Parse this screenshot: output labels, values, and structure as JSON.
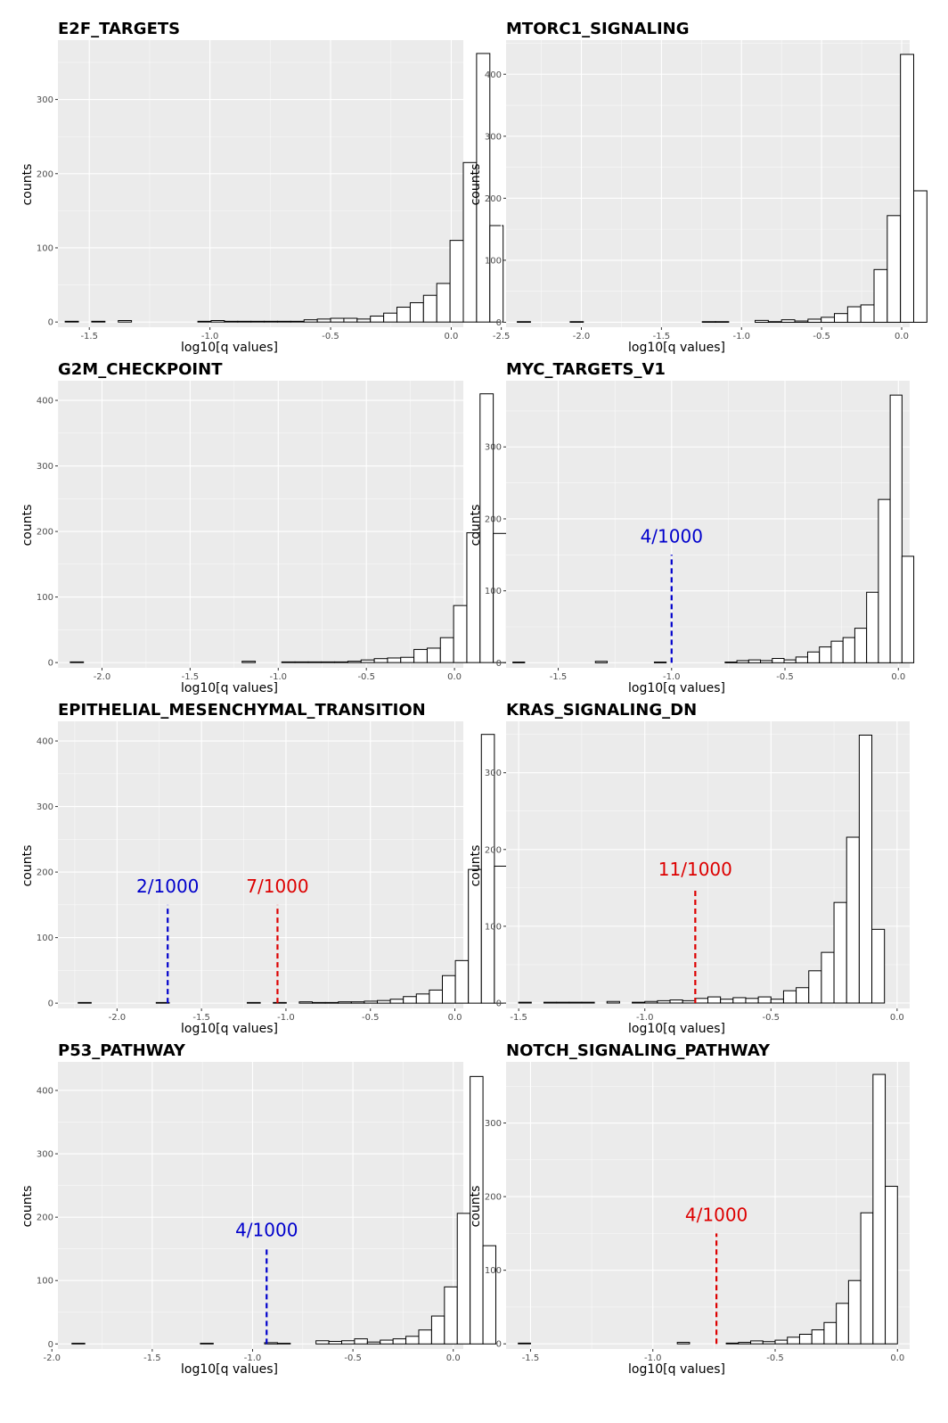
{
  "colors": {
    "panel_background": "#ebebeb",
    "grid_major": "#ffffff",
    "bar_fill": "#ffffff",
    "bar_stroke": "#000000",
    "blue_annotation": "#0000cc",
    "red_annotation": "#dd0000"
  },
  "chart_data": [
    {
      "type": "bar",
      "title": "E2F_TARGETS",
      "xlabel": "log10[q values]",
      "ylabel": "counts",
      "xlim": [
        -1.63,
        0.05
      ],
      "ylim": [
        -7,
        380
      ],
      "xticks": [
        -1.5,
        -1.0,
        -0.5,
        0.0
      ],
      "xtick_labels": [
        "-1.5",
        "-1.0",
        "-0.5",
        "0.0"
      ],
      "yticks": [
        0,
        100,
        200,
        300
      ],
      "yticks_labels": [
        "0",
        "100",
        "200",
        "300"
      ],
      "bin_start": -1.6,
      "bin_width": 0.055,
      "values": [
        1,
        0,
        1,
        0,
        2,
        0,
        0,
        0,
        0,
        0,
        1,
        2,
        1,
        1,
        1,
        1,
        1,
        1,
        3,
        4,
        5,
        5,
        4,
        8,
        12,
        20,
        26,
        36,
        52,
        110,
        215,
        362,
        130
      ],
      "annotations": []
    },
    {
      "type": "bar",
      "title": "MTORC1_SIGNALING",
      "xlabel": "log10[q values]",
      "ylabel": "counts",
      "xlim": [
        -2.47,
        0.05
      ],
      "ylim": [
        -8,
        455
      ],
      "xticks": [
        -2.5,
        -2.0,
        -1.5,
        -1.0,
        -0.5,
        0.0
      ],
      "xtick_labels": [
        "-2.5",
        "-2.0",
        "-1.5",
        "-1.0",
        "-0.5",
        "0.0"
      ],
      "yticks": [
        0,
        100,
        200,
        300,
        400
      ],
      "yticks_labels": [
        "0",
        "100",
        "200",
        "300",
        "400"
      ],
      "bin_start": -2.4,
      "bin_width": 0.0825,
      "values": [
        1,
        0,
        0,
        0,
        1,
        0,
        0,
        0,
        0,
        0,
        0,
        0,
        0,
        0,
        1,
        1,
        0,
        0,
        3,
        1,
        4,
        2,
        5,
        8,
        14,
        25,
        28,
        85,
        172,
        432,
        212
      ],
      "annotations": []
    },
    {
      "type": "bar",
      "title": "G2M_CHECKPOINT",
      "xlabel": "log10[q values]",
      "ylabel": "counts",
      "xlim": [
        -2.25,
        0.05
      ],
      "ylim": [
        -8,
        430
      ],
      "xticks": [
        -2.0,
        -1.5,
        -1.0,
        -0.5,
        0.0
      ],
      "xtick_labels": [
        "-2.0",
        "-1.5",
        "-1.0",
        "-0.5",
        "0.0"
      ],
      "yticks": [
        0,
        100,
        200,
        300,
        400
      ],
      "yticks_labels": [
        "0",
        "100",
        "200",
        "300",
        "400"
      ],
      "bin_start": -2.18,
      "bin_width": 0.075,
      "values": [
        1,
        0,
        0,
        0,
        0,
        0,
        0,
        0,
        0,
        0,
        0,
        0,
        0,
        2,
        0,
        0,
        1,
        1,
        1,
        1,
        1,
        2,
        4,
        6,
        7,
        8,
        20,
        22,
        38,
        87,
        198,
        410,
        197
      ],
      "annotations": []
    },
    {
      "type": "bar",
      "title": "MYC_TARGETS_V1",
      "xlabel": "log10[q values]",
      "ylabel": "counts",
      "xlim": [
        -1.73,
        0.05
      ],
      "ylim": [
        -7,
        392
      ],
      "xticks": [
        -1.5,
        -1.0,
        -0.5,
        0.0
      ],
      "xtick_labels": [
        "-1.5",
        "-1.0",
        "-0.5",
        "0.0"
      ],
      "yticks": [
        0,
        100,
        200,
        300
      ],
      "yticks_labels": [
        "0",
        "100",
        "200",
        "300"
      ],
      "bin_start": -1.7,
      "bin_width": 0.052,
      "values": [
        1,
        0,
        0,
        0,
        0,
        0,
        0,
        2,
        0,
        0,
        0,
        0,
        1,
        0,
        0,
        0,
        0,
        0,
        1,
        3,
        4,
        3,
        6,
        4,
        8,
        15,
        22,
        30,
        35,
        48,
        98,
        227,
        372,
        148
      ],
      "annotations": [
        {
          "x": -1.0,
          "y_top": 150,
          "label": "4/1000",
          "color": "#0000cc"
        }
      ]
    },
    {
      "type": "bar",
      "title": "EPITHELIAL_MESENCHYMAL_TRANSITION",
      "xlabel": "log10[q values]",
      "ylabel": "counts",
      "xlim": [
        -2.35,
        0.05
      ],
      "ylim": [
        -8,
        430
      ],
      "xticks": [
        -2.0,
        -1.5,
        -1.0,
        -0.5,
        0.0
      ],
      "xtick_labels": [
        "-2.0",
        "-1.5",
        "-1.0",
        "-0.5",
        "0.0"
      ],
      "yticks": [
        0,
        100,
        200,
        300,
        400
      ],
      "yticks_labels": [
        "0",
        "100",
        "200",
        "300",
        "400"
      ],
      "bin_start": -2.23,
      "bin_width": 0.077,
      "values": [
        1,
        0,
        0,
        0,
        0,
        0,
        1,
        0,
        0,
        0,
        0,
        0,
        0,
        1,
        0,
        1,
        0,
        2,
        1,
        1,
        2,
        2,
        3,
        4,
        6,
        10,
        14,
        20,
        42,
        65,
        204,
        410,
        209
      ],
      "annotations": [
        {
          "x": -1.7,
          "y_top": 150,
          "label": "2/1000",
          "color": "#0000cc"
        },
        {
          "x": -1.05,
          "y_top": 150,
          "label": "7/1000",
          "color": "#dd0000"
        }
      ]
    },
    {
      "type": "bar",
      "title": "KRAS_SIGNALING_DN",
      "xlabel": "log10[q values]",
      "ylabel": "counts",
      "xlim": [
        -1.55,
        0.05
      ],
      "ylim": [
        -7,
        367
      ],
      "xticks": [
        -1.5,
        -1.0,
        -0.5,
        0.0
      ],
      "xtick_labels": [
        "-1.5",
        "-1.0",
        "-0.5",
        "0.0"
      ],
      "yticks": [
        0,
        100,
        200,
        300
      ],
      "yticks_labels": [
        "0",
        "100",
        "200",
        "300"
      ],
      "bin_start": -1.5,
      "bin_width": 0.05,
      "values": [
        1,
        0,
        1,
        1,
        1,
        1,
        0,
        2,
        0,
        1,
        2,
        3,
        4,
        3,
        6,
        8,
        5,
        7,
        6,
        8,
        5,
        16,
        20,
        42,
        66,
        131,
        216,
        349,
        96
      ],
      "annotations": [
        {
          "x": -0.8,
          "y_top": 150,
          "label": "11/1000",
          "color": "#dd0000"
        }
      ]
    },
    {
      "type": "bar",
      "title": "P53_PATHWAY",
      "xlabel": "log10[q values]",
      "ylabel": "counts",
      "xlim": [
        -1.97,
        0.05
      ],
      "ylim": [
        -8,
        445
      ],
      "xticks": [
        -2.0,
        -1.5,
        -1.0,
        -0.5,
        0.0
      ],
      "xtick_labels": [
        "-2.0",
        "-1.5",
        "-1.0",
        "-0.5",
        "0.0"
      ],
      "yticks": [
        0,
        100,
        200,
        300,
        400
      ],
      "yticks_labels": [
        "0",
        "100",
        "200",
        "300",
        "400"
      ],
      "bin_start": -1.9,
      "bin_width": 0.064,
      "values": [
        1,
        0,
        0,
        0,
        0,
        0,
        0,
        0,
        0,
        0,
        1,
        0,
        0,
        0,
        0,
        2,
        1,
        0,
        0,
        5,
        4,
        5,
        8,
        3,
        6,
        8,
        12,
        22,
        44,
        90,
        206,
        422,
        155
      ],
      "annotations": [
        {
          "x": -0.93,
          "y_top": 150,
          "label": "4/1000",
          "color": "#0000cc"
        }
      ]
    },
    {
      "type": "bar",
      "title": "NOTCH_SIGNALING_PATHWAY",
      "xlabel": "log10[q values]",
      "ylabel": "counts",
      "xlim": [
        -1.6,
        0.05
      ],
      "ylim": [
        -7,
        383
      ],
      "xticks": [
        -1.5,
        -1.0,
        -0.5,
        0.0
      ],
      "xtick_labels": [
        "-1.5",
        "-1.0",
        "-0.5",
        "0.0"
      ],
      "yticks": [
        0,
        100,
        200,
        300
      ],
      "yticks_labels": [
        "0",
        "100",
        "200",
        "300"
      ],
      "bin_start": -1.55,
      "bin_width": 0.05,
      "values": [
        1,
        0,
        0,
        0,
        0,
        0,
        0,
        0,
        0,
        0,
        0,
        0,
        0,
        2,
        0,
        0,
        0,
        1,
        2,
        4,
        3,
        5,
        9,
        13,
        19,
        29,
        55,
        86,
        178,
        366,
        214
      ],
      "annotations": [
        {
          "x": -0.74,
          "y_top": 150,
          "label": "4/1000",
          "color": "#dd0000"
        }
      ]
    }
  ]
}
